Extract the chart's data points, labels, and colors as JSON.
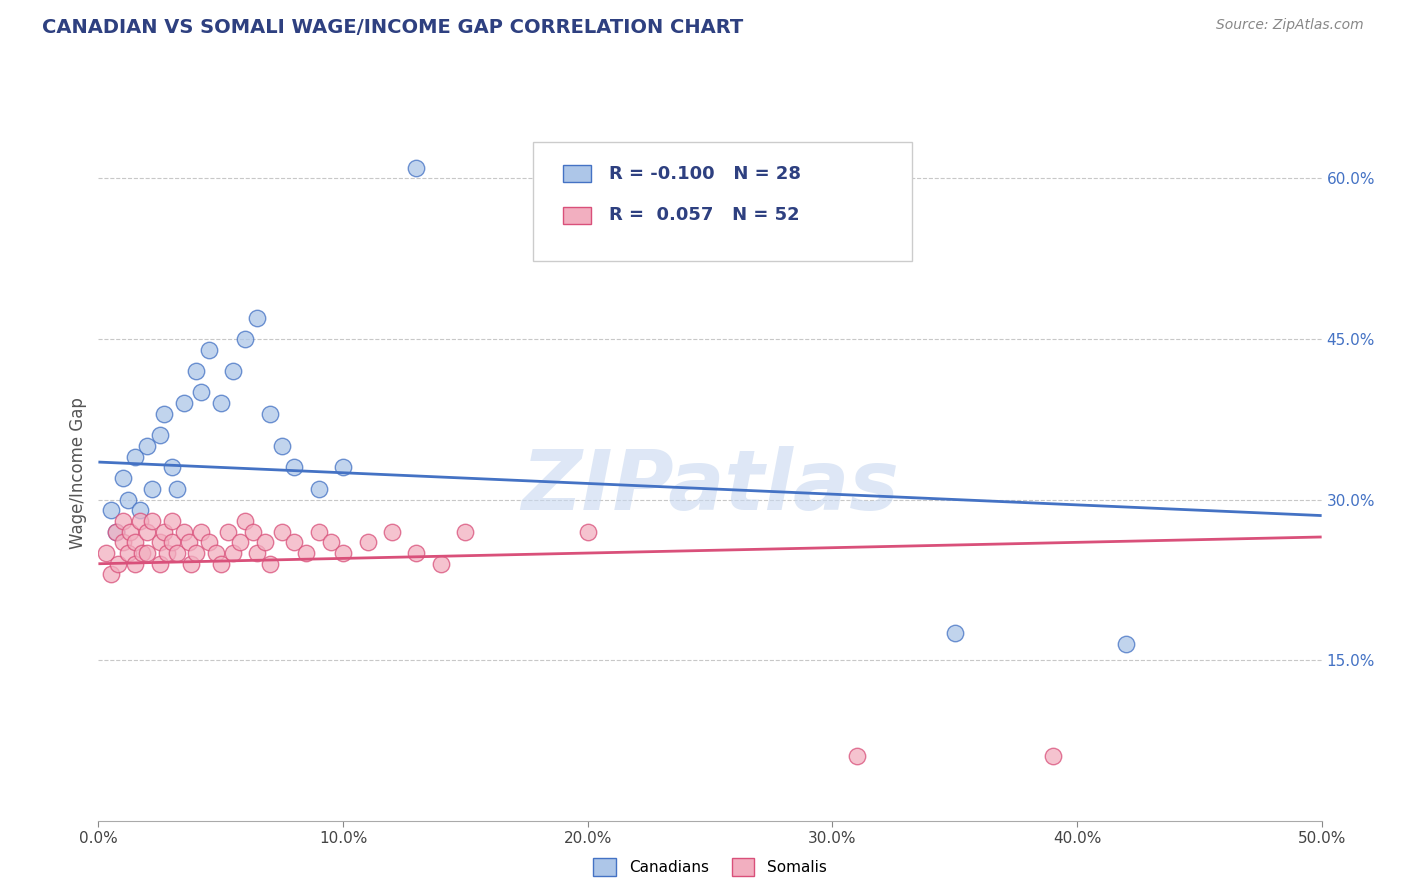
{
  "title": "CANADIAN VS SOMALI WAGE/INCOME GAP CORRELATION CHART",
  "source": "Source: ZipAtlas.com",
  "ylabel": "Wage/Income Gap",
  "xlim": [
    0.0,
    0.5
  ],
  "ylim": [
    0.0,
    0.65
  ],
  "xticks": [
    0.0,
    0.1,
    0.2,
    0.3,
    0.4,
    0.5
  ],
  "xticklabels": [
    "0.0%",
    "10.0%",
    "20.0%",
    "30.0%",
    "40.0%",
    "50.0%"
  ],
  "yticks_right": [
    0.15,
    0.3,
    0.45,
    0.6
  ],
  "ytick_right_labels": [
    "15.0%",
    "30.0%",
    "45.0%",
    "60.0%"
  ],
  "legend_R_canadian": "-0.100",
  "legend_N_canadian": "28",
  "legend_R_somali": "0.057",
  "legend_N_somali": "52",
  "canadian_color": "#adc6e8",
  "somali_color": "#f2afc0",
  "canadian_line_color": "#4472c4",
  "somali_line_color": "#d9507a",
  "title_color": "#2e4080",
  "legend_text_color": "#2e4080",
  "watermark_text": "ZIPatlas",
  "watermark_color": "#c8d8f0",
  "background_color": "#ffffff",
  "grid_color": "#c8c8c8",
  "canadians_x": [
    0.005,
    0.007,
    0.01,
    0.012,
    0.015,
    0.017,
    0.02,
    0.022,
    0.025,
    0.027,
    0.03,
    0.032,
    0.035,
    0.04,
    0.042,
    0.045,
    0.05,
    0.055,
    0.06,
    0.065,
    0.07,
    0.075,
    0.08,
    0.09,
    0.1,
    0.13,
    0.35,
    0.42
  ],
  "canadians_y": [
    0.29,
    0.27,
    0.32,
    0.3,
    0.34,
    0.29,
    0.35,
    0.31,
    0.36,
    0.38,
    0.33,
    0.31,
    0.39,
    0.42,
    0.4,
    0.44,
    0.39,
    0.42,
    0.45,
    0.47,
    0.38,
    0.35,
    0.33,
    0.31,
    0.33,
    0.61,
    0.175,
    0.165
  ],
  "somalis_x": [
    0.003,
    0.005,
    0.007,
    0.008,
    0.01,
    0.01,
    0.012,
    0.013,
    0.015,
    0.015,
    0.017,
    0.018,
    0.02,
    0.02,
    0.022,
    0.025,
    0.025,
    0.027,
    0.028,
    0.03,
    0.03,
    0.032,
    0.035,
    0.037,
    0.038,
    0.04,
    0.042,
    0.045,
    0.048,
    0.05,
    0.053,
    0.055,
    0.058,
    0.06,
    0.063,
    0.065,
    0.068,
    0.07,
    0.075,
    0.08,
    0.085,
    0.09,
    0.095,
    0.1,
    0.11,
    0.12,
    0.13,
    0.14,
    0.15,
    0.2,
    0.31,
    0.39
  ],
  "somalis_y": [
    0.25,
    0.23,
    0.27,
    0.24,
    0.28,
    0.26,
    0.25,
    0.27,
    0.24,
    0.26,
    0.28,
    0.25,
    0.27,
    0.25,
    0.28,
    0.26,
    0.24,
    0.27,
    0.25,
    0.26,
    0.28,
    0.25,
    0.27,
    0.26,
    0.24,
    0.25,
    0.27,
    0.26,
    0.25,
    0.24,
    0.27,
    0.25,
    0.26,
    0.28,
    0.27,
    0.25,
    0.26,
    0.24,
    0.27,
    0.26,
    0.25,
    0.27,
    0.26,
    0.25,
    0.26,
    0.27,
    0.25,
    0.24,
    0.27,
    0.27,
    0.06,
    0.06
  ],
  "can_trend_x": [
    0.0,
    0.5
  ],
  "can_trend_y": [
    0.335,
    0.285
  ],
  "som_trend_x": [
    0.0,
    0.5
  ],
  "som_trend_y": [
    0.24,
    0.265
  ]
}
